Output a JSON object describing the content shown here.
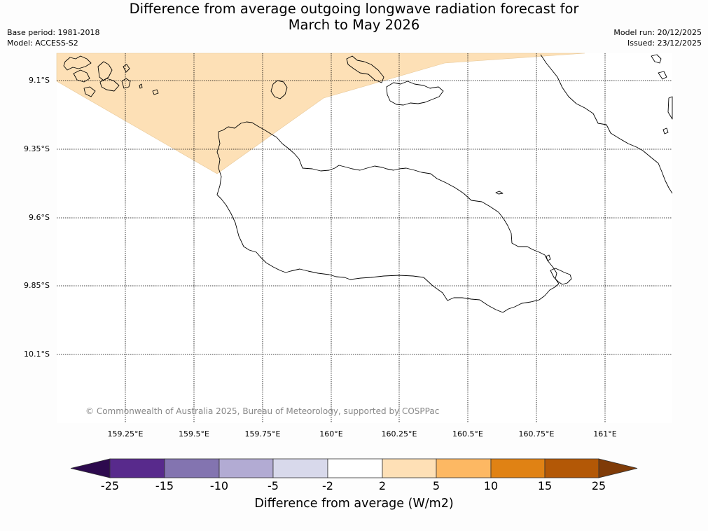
{
  "title": {
    "line1": "Difference from average outgoing longwave radiation forecast for",
    "line2": "March to May 2026"
  },
  "meta": {
    "base_period": "Base period: 1981-2018",
    "model": "Model: ACCESS-S2",
    "model_run": "Model run: 20/12/2025",
    "issued": "Issued: 23/12/2025"
  },
  "map": {
    "lat_ticks": [
      "9.1°S",
      "9.35°S",
      "9.6°S",
      "9.85°S",
      "10.1°S"
    ],
    "lon_ticks": [
      "159.25°E",
      "159.5°E",
      "159.75°E",
      "160°E",
      "160.25°E",
      "160.5°E",
      "160.75°E",
      "161°E"
    ],
    "copyright": "© Commonwealth of Australia 2025, Bureau of Meteorology, supported by COSPPac",
    "anomaly_region_category": "2 to 5",
    "colors": {
      "anomaly_fill": "#fde0b6",
      "coastline": "#000000",
      "grid": "#000000"
    }
  },
  "colorbar": {
    "title": "Difference from average (W/m2)",
    "labels": [
      "-25",
      "-15",
      "-10",
      "-5",
      "-2",
      "2",
      "5",
      "10",
      "15",
      "25"
    ],
    "colors": [
      "#2d0a4e",
      "#582a8c",
      "#8374b0",
      "#b2abd3",
      "#d8d9eb",
      "#ffffff",
      "#fee0b6",
      "#fdb863",
      "#e08214",
      "#b35806",
      "#7f3b08"
    ]
  }
}
